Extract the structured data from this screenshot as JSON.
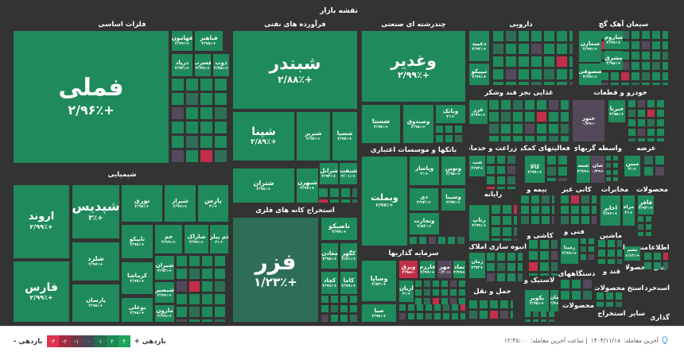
{
  "title": "نقشه بازار",
  "colors": {
    "up": "#1f8a5b",
    "up_dim": "#2e6e56",
    "down": "#c13048",
    "flat": "#54495a",
    "background": "#333333"
  },
  "sectors": [
    "فلزات اساسی",
    "فرآورده های نفتی",
    "چندرشته ای صنعتی",
    "دارویی",
    "سیمان آهک گچ",
    "شیمیایی",
    "استخراج کانه های فلزی",
    "بانکها و موسسات اعتباری",
    "غذایی بجز قند وشکر",
    "خودرو و قطعات",
    "زراعت و خدمات",
    "فعالیتهای کمکی",
    "واسطه گریهای",
    "عرضه",
    "رایانه",
    "بیمه و",
    "کانی غیر",
    "مخابرات",
    "محصولات",
    "کاشی و",
    "فنی و",
    "ماشین",
    "منسوجا",
    "اطلاعا",
    "انبوه سازی املاک",
    "سرمایه گذاریها",
    "حمل و نقل",
    "لاستیک و",
    "دستگاههای",
    "قند و",
    "محصولا",
    "هتل",
    "محصولات",
    "استخ",
    "خردر",
    "است",
    "محصولات",
    "استخراج",
    "سایر",
    "گذاری"
  ],
  "tiles": [
    {
      "symbol": "فملی",
      "change": "+۲/۹۶٪",
      "tone": "up"
    },
    {
      "symbol": "فهامون",
      "change": "+۲/۹۹٪",
      "tone": "up"
    },
    {
      "symbol": "فباهنر",
      "change": "+۲/۹۸٪",
      "tone": "up"
    },
    {
      "symbol": "درپاد",
      "change": "+۲/۹۳٪",
      "tone": "up"
    },
    {
      "symbol": "فسرب",
      "change": "+۲/۹۹٪",
      "tone": "up"
    },
    {
      "symbol": "ذوب",
      "change": "+۲/۷۵٪",
      "tone": "up"
    },
    {
      "symbol": "شبندر",
      "change": "+۲/۸۸٪",
      "tone": "up"
    },
    {
      "symbol": "شپنا",
      "change": "+۲/۸۹٪",
      "tone": "up"
    },
    {
      "symbol": "شبریز",
      "change": "+۲/۹۷٪",
      "tone": "up"
    },
    {
      "symbol": "شسپا",
      "change": "+۲/۹۷٪",
      "tone": "up"
    },
    {
      "symbol": "شتران",
      "change": "+۲/۹۸٪",
      "tone": "up"
    },
    {
      "symbol": "شبهرن",
      "change": "+۲/۹۷٪",
      "tone": "up"
    },
    {
      "symbol": "شرانل",
      "change": "+۲/۹۳٪",
      "tone": "up"
    },
    {
      "symbol": "شنفت",
      "change": "+۲/۰۱٪",
      "tone": "up"
    },
    {
      "symbol": "فزر",
      "change": "+۱/۲۳٪",
      "tone": "up_dim"
    },
    {
      "symbol": "تاصیکو",
      "change": "+۲/۹۷٪",
      "tone": "up"
    },
    {
      "symbol": "معادن",
      "change": "+۲/۹۸٪",
      "tone": "up"
    },
    {
      "symbol": "کگهر",
      "change": "+۲/۸۱٪",
      "tone": "up"
    },
    {
      "symbol": "کچاد",
      "change": "+۲/۹۹٪",
      "tone": "up"
    },
    {
      "symbol": "کاما",
      "change": "+۲/۹۹٪",
      "tone": "up"
    },
    {
      "symbol": "اروند",
      "change": "+۲/۹۹٪",
      "tone": "up"
    },
    {
      "symbol": "فارس",
      "change": "+۲/۹۹٪",
      "tone": "up"
    },
    {
      "symbol": "شپدیس",
      "change": "+۳٪",
      "tone": "up"
    },
    {
      "symbol": "شلرد",
      "change": "+۲/۹۷٪",
      "tone": "up"
    },
    {
      "symbol": "پارسان",
      "change": "+۲/۹۸٪",
      "tone": "up"
    },
    {
      "symbol": "نوری",
      "change": "+۲/۹۸٪",
      "tone": "up"
    },
    {
      "symbol": "شیراز",
      "change": "+۲/۹۹٪",
      "tone": "up"
    },
    {
      "symbol": "پارس",
      "change": "+۳٪",
      "tone": "up"
    },
    {
      "symbol": "تاپیکو",
      "change": "+۲/۹۸٪",
      "tone": "up"
    },
    {
      "symbol": "جم",
      "change": "+۲/۹۹٪",
      "tone": "up"
    },
    {
      "symbol": "شاراک",
      "change": "+۲/۹۹٪",
      "tone": "up"
    },
    {
      "symbol": "جم پیلن",
      "change": "+۳٪",
      "tone": "up"
    },
    {
      "symbol": "کرماشا",
      "change": "+۲/۹۷٪",
      "tone": "up"
    },
    {
      "symbol": "بوعلی",
      "change": "+۲/۹۸٪",
      "tone": "up"
    },
    {
      "symbol": "شیران",
      "change": "+۲/۹۴٪",
      "tone": "up"
    },
    {
      "symbol": "شبصیر",
      "change": "+۲/۹۹٪",
      "tone": "up"
    },
    {
      "symbol": "مارون",
      "change": "+۲/۹۹٪",
      "tone": "up"
    },
    {
      "symbol": "وغدیر",
      "change": "+۲/۹۹٪",
      "tone": "up"
    },
    {
      "symbol": "شستا",
      "change": "+۲/۹۷٪",
      "tone": "up"
    },
    {
      "symbol": "وصندوق",
      "change": "+۲/۹۸٪",
      "tone": "up"
    },
    {
      "symbol": "وبانک",
      "change": "+۳٪",
      "tone": "up"
    },
    {
      "symbol": "وبملت",
      "change": "+۲/۹۷٪",
      "tone": "up"
    },
    {
      "symbol": "وپاسار",
      "change": "+۳٪",
      "tone": "up"
    },
    {
      "symbol": "ونوین",
      "change": "+۲/۹۵٪",
      "tone": "up"
    },
    {
      "symbol": "دی",
      "change": "+۲/۹۴٪",
      "tone": "up"
    },
    {
      "symbol": "وسینا",
      "change": "+۲/۹۷٪",
      "tone": "up"
    },
    {
      "symbol": "وتجارت",
      "change": "+۲/۸۴٪",
      "tone": "up"
    },
    {
      "symbol": "وساپا",
      "change": "+۲/۸۴٪",
      "tone": "up"
    },
    {
      "symbol": "صبا",
      "change": "+۲/۹۸٪",
      "tone": "up"
    },
    {
      "symbol": "وبرق",
      "change": "-۲/۹۵٪",
      "tone": "down"
    },
    {
      "symbol": "خارزم",
      "change": "+۲/۹۹٪",
      "tone": "up"
    },
    {
      "symbol": "مهر",
      "change": "-۰/۲۰٪",
      "tone": "flat"
    },
    {
      "symbol": "نماد",
      "change": "+۲/۹۹",
      "tone": "up"
    },
    {
      "symbol": "اریان",
      "change": "+۳٪",
      "tone": "up"
    },
    {
      "symbol": "دعبید",
      "change": "+۲/۹۳٪",
      "tone": "up"
    },
    {
      "symbol": "تیپیکو",
      "change": "+۲/۹۹٪",
      "tone": "up"
    },
    {
      "symbol": "سمازن",
      "change": "+۲/۹۹٪",
      "tone": "up"
    },
    {
      "symbol": "ساروم",
      "change": "+۲/۹۹٪",
      "tone": "up"
    },
    {
      "symbol": "مشرق",
      "change": "+۲/۹۵٪",
      "tone": "up"
    },
    {
      "symbol": "سصوفی",
      "change": "+۲/۹۹٪",
      "tone": "up"
    },
    {
      "symbol": "غزر",
      "change": "+۲/۹۹٪",
      "tone": "up"
    },
    {
      "symbol": "خنور",
      "change": "-۰/۷۹٪",
      "tone": "flat"
    },
    {
      "symbol": "خبرنا",
      "change": "+۲/۹۵٪",
      "tone": "up"
    },
    {
      "symbol": "شت",
      "change": "+۲/۹۴",
      "tone": "up"
    },
    {
      "symbol": "کالا",
      "change": "+۲/۹۷٪",
      "tone": "up"
    },
    {
      "symbol": "شمه",
      "change": "+۲/۹۹",
      "tone": "up"
    },
    {
      "symbol": "شان",
      "change": "+۰/۳۹",
      "tone": "flat"
    },
    {
      "symbol": "مبین",
      "change": "+۳٪",
      "tone": "up"
    },
    {
      "symbol": "رتاپ",
      "change": "+۲/۹۹٪",
      "tone": "up"
    },
    {
      "symbol": "اخابر",
      "change": "+۲/۸۶٪",
      "tone": "up"
    },
    {
      "symbol": "مراه",
      "change": "+۳٪",
      "tone": "up"
    },
    {
      "symbol": "فافر",
      "change": "+۲/۹۳٪",
      "tone": "up"
    },
    {
      "symbol": "رمپنا",
      "change": "+۲/۹۹٪",
      "tone": "up"
    },
    {
      "symbol": "تشم",
      "change": "+۱/۱۳٪",
      "tone": "up"
    },
    {
      "symbol": "زمان",
      "change": "+۲/۹۳",
      "tone": "up"
    },
    {
      "symbol": "پکویر",
      "change": "+۲/۹۵٪",
      "tone": "up"
    },
    {
      "symbol": "مان",
      "change": "+۲/۹",
      "tone": "up"
    }
  ],
  "legend": {
    "negative_label": "بازدهی -",
    "positive_label": "بازدهی +",
    "steps": [
      {
        "label": "-۴",
        "color": "#e0334d"
      },
      {
        "label": "-۲",
        "color": "#a32c43"
      },
      {
        "label": "-۱",
        "color": "#6e3a4a"
      },
      {
        "label": "۰",
        "color": "#444b55"
      },
      {
        "label": "۱",
        "color": "#22704e"
      },
      {
        "label": "۲",
        "color": "#1d8b55"
      },
      {
        "label": "۴",
        "color": "#21a35c"
      }
    ]
  },
  "status": {
    "last_trade_label": "آخرین معامله:",
    "last_trade_date": "۱۴۰۴/۱۱/۱۸",
    "last_time_label": "| ساعت آخرین معامله:",
    "last_time": "۱۲:۴۵:۰۰",
    "icon": "lightbulb-icon"
  }
}
